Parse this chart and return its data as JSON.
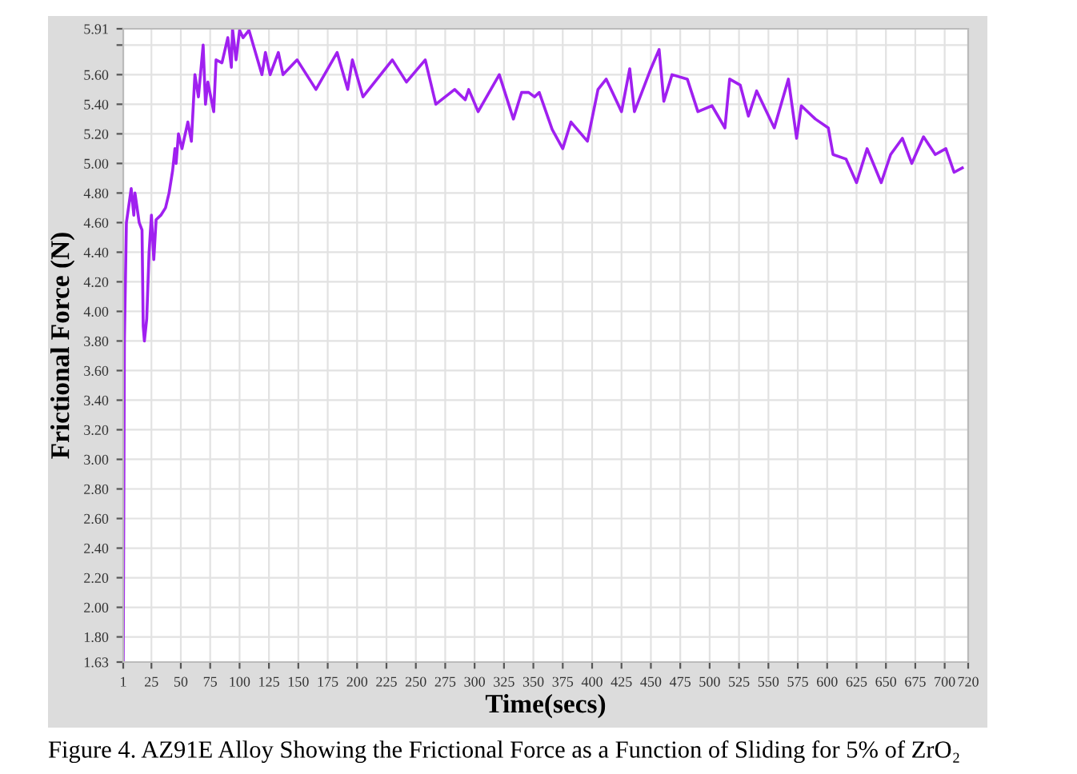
{
  "chart_data": {
    "type": "line",
    "xlabel": "Time(secs)",
    "ylabel": "Frictional Force (N)",
    "annotations": [
      "Figure 4. AZ91E Alloy Showing the Frictional Force as a Function of Sliding for 5% of ZrO₂"
    ],
    "xlim": [
      1,
      720
    ],
    "ylim": [
      1.63,
      5.91
    ],
    "xticks": [
      1,
      25,
      50,
      75,
      100,
      125,
      150,
      175,
      200,
      225,
      250,
      275,
      300,
      325,
      350,
      375,
      400,
      425,
      450,
      475,
      500,
      525,
      550,
      575,
      600,
      625,
      650,
      675,
      700,
      720
    ],
    "yticks": [
      1.63,
      {
        "value": 1.8,
        "label": "1.80"
      },
      {
        "value": 2.0,
        "label": "2.00"
      },
      {
        "value": 2.2,
        "label": "2.20"
      },
      {
        "value": 2.4,
        "label": "2.40"
      },
      {
        "value": 2.6,
        "label": "2.60"
      },
      {
        "value": 2.8,
        "label": "2.80"
      },
      {
        "value": 3.0,
        "label": "3.00"
      },
      {
        "value": 3.2,
        "label": "3.20"
      },
      {
        "value": 3.4,
        "label": "3.40"
      },
      {
        "value": 3.6,
        "label": "3.60"
      },
      {
        "value": 3.8,
        "label": "3.80"
      },
      {
        "value": 4.0,
        "label": "4.00"
      },
      {
        "value": 4.2,
        "label": "4.20"
      },
      {
        "value": 4.4,
        "label": "4.40"
      },
      {
        "value": 4.6,
        "label": "4.60"
      },
      {
        "value": 4.8,
        "label": "4.80"
      },
      {
        "value": 5.0,
        "label": "5.00"
      },
      {
        "value": 5.2,
        "label": "5.20"
      },
      {
        "value": 5.4,
        "label": "5.40"
      },
      {
        "value": 5.6,
        "label": "5.60"
      },
      {
        "value": 5.8,
        "label": null
      },
      5.91
    ],
    "grid": true,
    "legend": false,
    "marker": "none",
    "line_style": "solid",
    "series": [
      {
        "color": "#a020f0",
        "x": [
          1,
          2,
          3.7,
          7.8,
          10,
          11,
          14.6,
          17,
          18,
          19,
          21,
          23,
          25,
          27,
          29,
          33,
          37,
          40,
          43,
          45,
          46,
          48,
          51,
          56,
          59,
          62,
          65,
          69,
          71,
          73,
          78,
          80,
          85,
          90,
          93,
          94,
          97,
          100,
          103,
          108,
          119,
          122,
          126,
          133,
          137,
          149,
          165,
          183,
          192,
          196,
          205,
          230,
          242,
          258,
          267,
          283,
          292,
          295,
          303,
          321,
          333,
          340,
          346,
          351,
          355,
          366,
          375,
          382,
          396,
          405,
          412,
          425,
          432,
          436,
          450,
          457,
          461,
          468,
          481,
          490,
          502,
          513,
          517,
          526,
          533,
          540,
          555,
          567,
          574,
          578,
          590,
          601,
          605,
          616,
          625,
          634,
          646,
          654,
          664,
          672,
          682,
          692,
          701,
          708,
          715
        ],
        "values": [
          1.63,
          3.8,
          4.6,
          4.83,
          4.65,
          4.8,
          4.6,
          4.55,
          3.9,
          3.8,
          3.95,
          4.4,
          4.65,
          4.35,
          4.62,
          4.65,
          4.7,
          4.8,
          4.95,
          5.1,
          5.0,
          5.2,
          5.1,
          5.28,
          5.15,
          5.6,
          5.45,
          5.8,
          5.4,
          5.55,
          5.35,
          5.7,
          5.68,
          5.85,
          5.65,
          5.91,
          5.7,
          5.9,
          5.85,
          5.9,
          5.6,
          5.75,
          5.6,
          5.75,
          5.6,
          5.7,
          5.5,
          5.75,
          5.5,
          5.7,
          5.45,
          5.7,
          5.55,
          5.7,
          5.4,
          5.5,
          5.43,
          5.5,
          5.35,
          5.6,
          5.3,
          5.48,
          5.48,
          5.45,
          5.48,
          5.23,
          5.1,
          5.28,
          5.15,
          5.5,
          5.57,
          5.35,
          5.64,
          5.35,
          5.64,
          5.77,
          5.42,
          5.6,
          5.57,
          5.35,
          5.39,
          5.24,
          5.57,
          5.53,
          5.32,
          5.49,
          5.24,
          5.57,
          5.17,
          5.39,
          5.3,
          5.24,
          5.06,
          5.03,
          4.87,
          5.1,
          4.87,
          5.06,
          5.17,
          5.0,
          5.18,
          5.06,
          5.1,
          4.94,
          4.97
        ]
      }
    ]
  }
}
